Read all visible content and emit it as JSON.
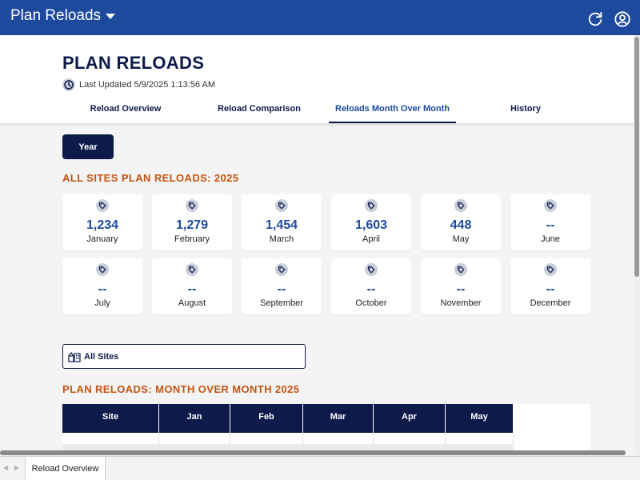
{
  "app": {
    "title": "Plan Reloads"
  },
  "header": {
    "page_title": "PLAN RELOADS",
    "last_updated": "Last Updated 5/9/2025 1:13:56 AM"
  },
  "tabs": [
    {
      "label": "Reload Overview",
      "active": false
    },
    {
      "label": "Reload Comparison",
      "active": false
    },
    {
      "label": "Reloads Month Over Month",
      "active": true
    },
    {
      "label": "History",
      "active": false
    }
  ],
  "filter": {
    "year_label": "Year"
  },
  "summary": {
    "title": "ALL SITES PLAN RELOADS: 2025",
    "months": [
      {
        "value": "1,234",
        "label": "January"
      },
      {
        "value": "1,279",
        "label": "February"
      },
      {
        "value": "1,454",
        "label": "March"
      },
      {
        "value": "1,603",
        "label": "April"
      },
      {
        "value": "448",
        "label": "May"
      },
      {
        "value": "--",
        "label": "June"
      },
      {
        "value": "--",
        "label": "July"
      },
      {
        "value": "--",
        "label": "August"
      },
      {
        "value": "--",
        "label": "September"
      },
      {
        "value": "--",
        "label": "October"
      },
      {
        "value": "--",
        "label": "November"
      },
      {
        "value": "--",
        "label": "December"
      }
    ]
  },
  "site_selector": {
    "label": "All Sites"
  },
  "table": {
    "title": "PLAN RELOADS: MONTH OVER MONTH 2025",
    "headers": [
      "Site",
      "Jan",
      "Feb",
      "Mar",
      "Apr",
      "May"
    ]
  },
  "sheet_tabs": [
    "Reload Overview"
  ],
  "icons": {
    "refresh": "refresh-icon",
    "user": "user-icon",
    "clock": "clock-icon",
    "tag": "tag-icon",
    "sites": "sites-icon"
  },
  "colors": {
    "brand": "#1e4a9e",
    "navy": "#0d1a4a",
    "section_title": "#c45310"
  }
}
